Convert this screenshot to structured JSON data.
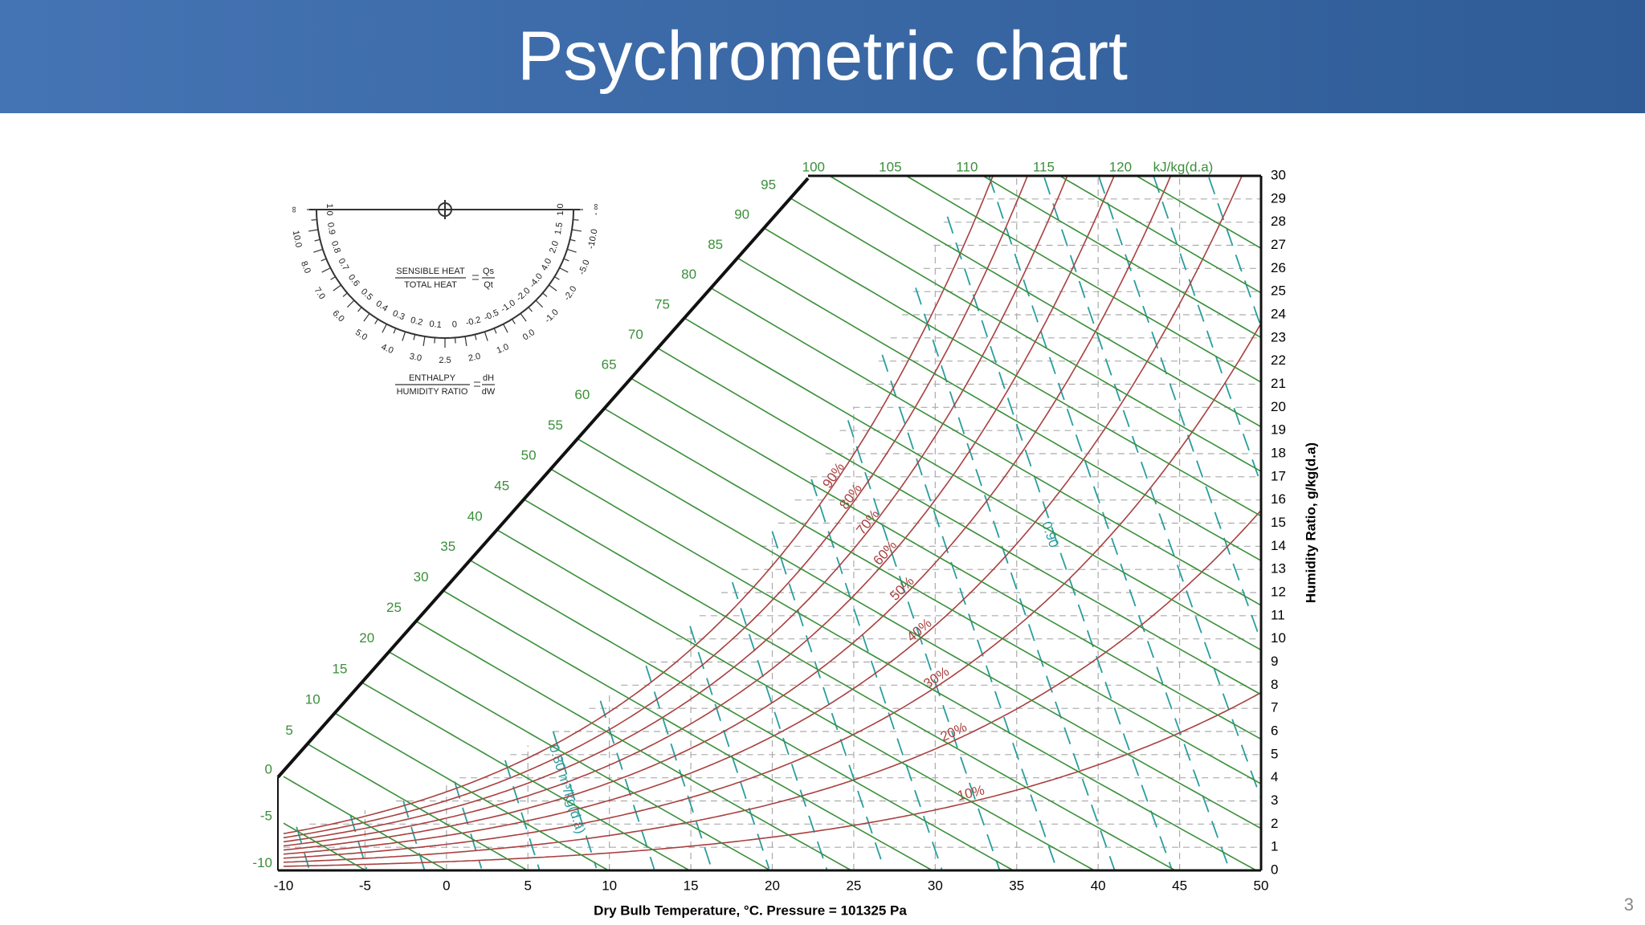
{
  "title": "Psychrometric chart",
  "slide_number": "3",
  "chart_data": {
    "type": "psychrometric",
    "xlabel": "Dry Bulb Temperature, °C. Pressure = 101325 Pa",
    "ylabel": "Humidity Ratio, g/kg(d.a)",
    "pressure": 101325,
    "xlim": [
      -10,
      50
    ],
    "xticks": [
      -10,
      -5,
      0,
      5,
      10,
      15,
      20,
      25,
      30,
      35,
      40,
      45,
      50
    ],
    "ylim": [
      0,
      30
    ],
    "yticks": [
      0,
      1,
      2,
      3,
      4,
      5,
      6,
      7,
      8,
      9,
      10,
      11,
      12,
      13,
      14,
      15,
      16,
      17,
      18,
      19,
      20,
      21,
      22,
      23,
      24,
      25,
      26,
      27,
      28,
      29,
      30
    ],
    "grid": true,
    "enthalpy": {
      "unit": "kJ/kg(d.a)",
      "color": "#3a8f3a",
      "values": [
        -10,
        -5,
        0,
        5,
        10,
        15,
        20,
        25,
        30,
        35,
        40,
        45,
        50,
        55,
        60,
        65,
        70,
        75,
        80,
        85,
        90,
        95,
        100,
        105,
        110,
        115,
        120
      ]
    },
    "relative_humidity": {
      "color": "#a8403f",
      "values": [
        10,
        20,
        30,
        40,
        50,
        60,
        70,
        80,
        90
      ],
      "value_labels": [
        "10%",
        "20%",
        "30%",
        "40%",
        "50%",
        "60%",
        "70%",
        "80%",
        "90%"
      ]
    },
    "specific_volume": {
      "color": "#2a9d9d",
      "values": [
        0.75,
        0.76,
        0.77,
        0.78,
        0.79,
        0.8,
        0.81,
        0.82,
        0.83,
        0.84,
        0.85,
        0.86,
        0.87,
        0.88,
        0.89,
        0.9,
        0.91,
        0.92,
        0.93,
        0.94,
        0.95
      ],
      "annotations": [
        {
          "value": 0.8,
          "label": "0.80 m³/kg(d.a)"
        },
        {
          "value": 0.9,
          "label": "0.90"
        }
      ]
    }
  },
  "protractor": {
    "outer_labels": [
      "∞",
      "10.0",
      "8.0",
      "7.0",
      "6.0",
      "5.0",
      "4.0",
      "3.0",
      "2.5",
      "2.0",
      "1.0",
      "0.0",
      "-1.0",
      "-2.0",
      "-5.0",
      "-10.0",
      "- ∞"
    ],
    "inner_labels": [
      "1.0",
      "0.9",
      "0.8",
      "0.7",
      "0.6",
      "0.5",
      "0.4",
      "0.3",
      "0.2",
      "0.1",
      "0",
      "-0.2",
      "-0.5",
      "-1.0",
      "-2.0",
      "-4.0",
      "4.0",
      "2.0",
      "1.5",
      "1.0"
    ],
    "shr": {
      "numerator": "SENSIBLE HEAT",
      "denominator": "TOTAL HEAT",
      "symbol_numerator": "Qs",
      "symbol_denominator": "Qt"
    },
    "enthalpy_ratio": {
      "numerator": "ENTHALPY",
      "denominator": "HUMIDITY RATIO",
      "symbol_numerator": "dH",
      "symbol_denominator": "dW"
    }
  }
}
